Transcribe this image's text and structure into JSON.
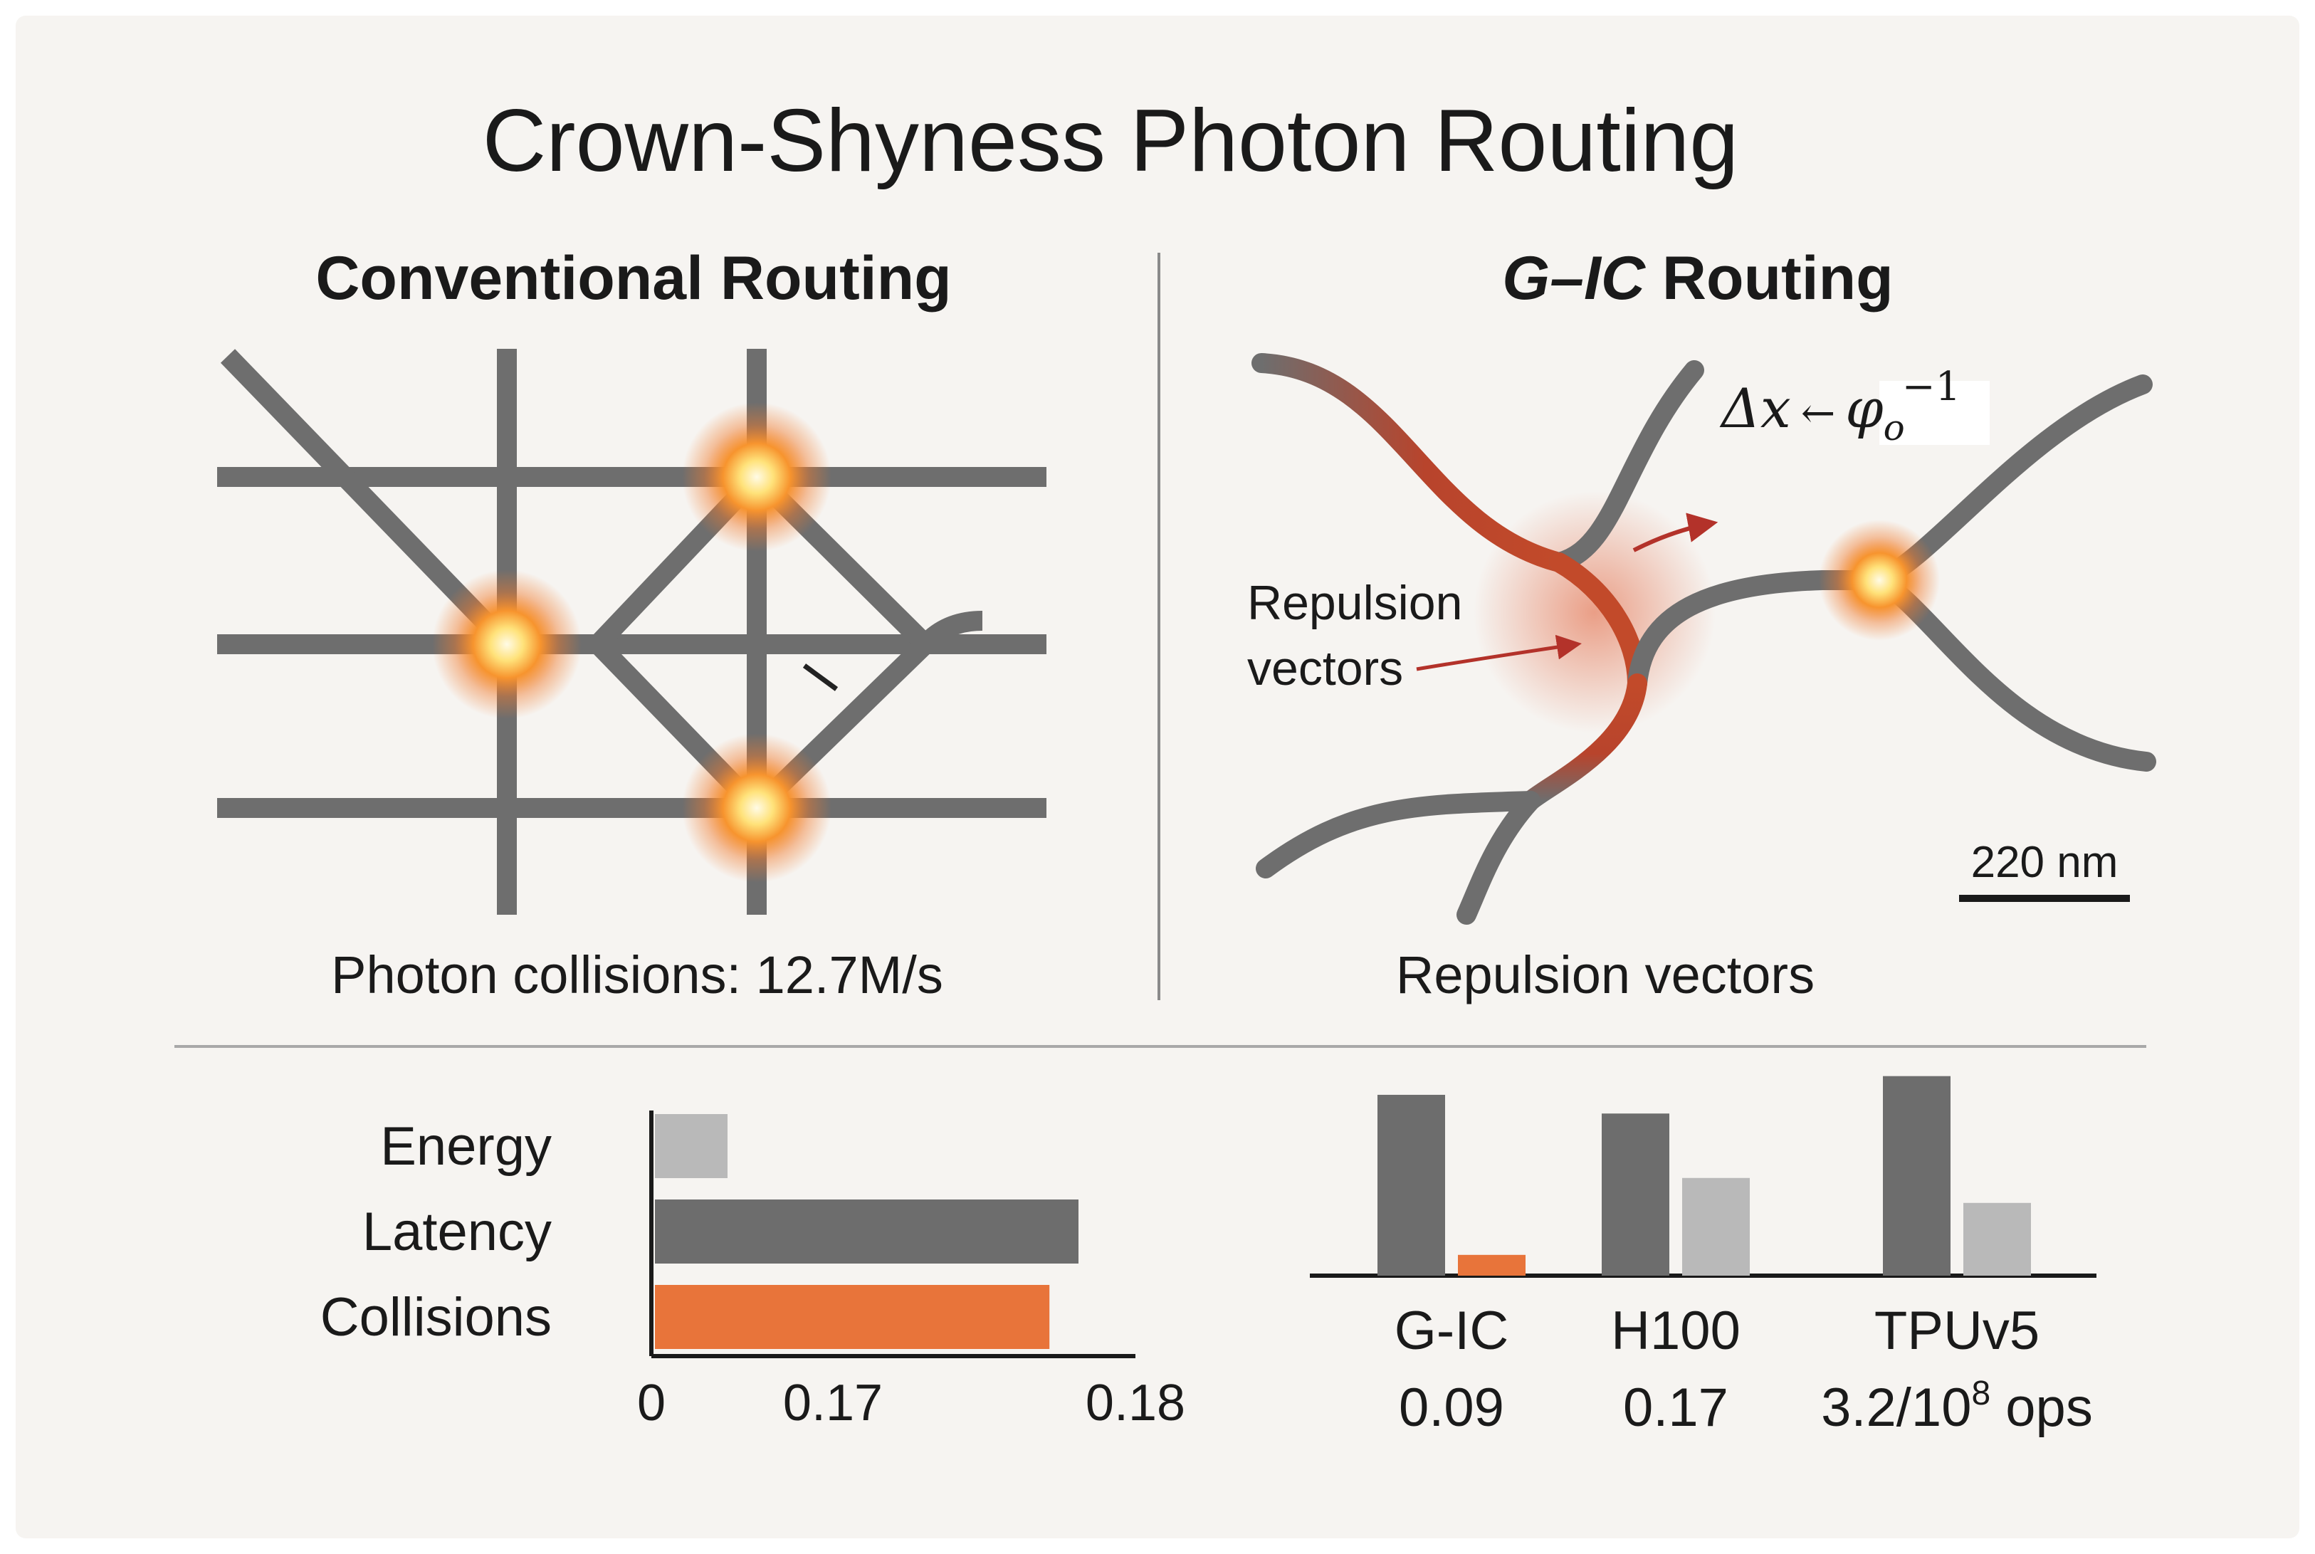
{
  "title": "Crown-Shyness Photon Routing",
  "left_panel": {
    "heading": "Conventional Routing",
    "caption": "Photon collisions: 12.7M/s"
  },
  "right_panel": {
    "heading_prefix": "G",
    "heading_dash": "–",
    "heading_italic": "IC",
    "heading_suffix": " Routing",
    "equation_lhs": "Δx",
    "equation_arrow": "←",
    "equation_symbol": "φ",
    "equation_subscript": "o",
    "equation_superscript": "−1",
    "annotation_line1": "Repulsion",
    "annotation_line2": "vectors",
    "scale_bar_label": "220 nm",
    "caption": "Repulsion vectors"
  },
  "colors": {
    "waveguide": "#6e6e6e",
    "highlight": "#e8743a",
    "light_bar": "#b9b9b9",
    "dark_bar": "#6d6d6d",
    "glow_core": "#fff6c8",
    "arrow": "#b3322a"
  },
  "chart_data": [
    {
      "type": "bar",
      "orientation": "horizontal",
      "categories": [
        "Energy",
        "Latency",
        "Collisions"
      ],
      "values": [
        0.03,
        0.175,
        0.163
      ],
      "colors": [
        "#b9b9b9",
        "#6d6d6d",
        "#e8743a"
      ],
      "xticks": [
        {
          "label": "0",
          "value": 0
        },
        {
          "label": "0.17",
          "value": 0.075
        },
        {
          "label": "0.18",
          "value": 0.2
        }
      ],
      "xlim": [
        0,
        0.2
      ]
    },
    {
      "type": "bar",
      "categories": [
        "G-IC",
        "H100",
        "TPUv5"
      ],
      "category_values": [
        "0.09",
        "0.17",
        "3.2/10"
      ],
      "category_value_superscript": [
        "",
        "",
        "8"
      ],
      "category_value_suffix": [
        "",
        "",
        " ops"
      ],
      "series": [
        {
          "values": [
            0.87,
            0.78,
            0.96
          ],
          "color": "#6d6d6d"
        },
        {
          "values": [
            0.1,
            0.47,
            0.35
          ],
          "colors": [
            "#e8743a",
            "#b9b9b9",
            "#b9b9b9"
          ]
        }
      ],
      "ylim": [
        0,
        1
      ]
    }
  ]
}
